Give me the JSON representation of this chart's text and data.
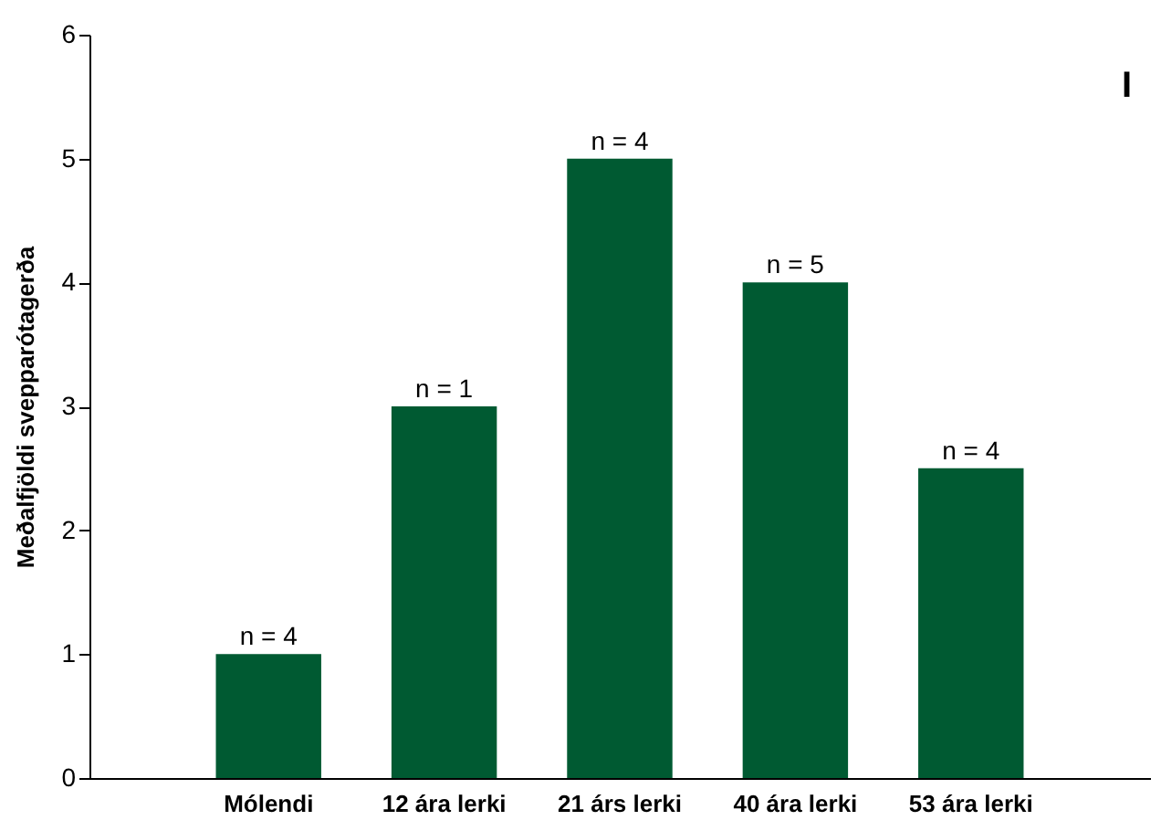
{
  "chart_data": {
    "type": "bar",
    "ylabel": "Meðalfjöldi svepparótagerða",
    "categories": [
      "Mólendi",
      "12 ára lerki",
      "21 árs lerki",
      "40 ára lerki",
      "53 ára lerki"
    ],
    "values": [
      1,
      3,
      5,
      4,
      2.5
    ],
    "color": "#005a32",
    "ylim": [
      0,
      6
    ],
    "yticks": [
      0,
      1,
      2,
      3,
      4,
      5,
      6
    ],
    "grid": false,
    "annotations": [
      {
        "text": "n = 4",
        "x": "Mólendi",
        "y": 1
      },
      {
        "text": "n = 1",
        "x": "12 ára lerki",
        "y": 3
      },
      {
        "text": "n = 4",
        "x": "21 árs lerki",
        "y": 5
      },
      {
        "text": "n = 5",
        "x": "40 ára lerki",
        "y": 4
      },
      {
        "text": "n = 4",
        "x": "53 ára lerki",
        "y": 2.5
      },
      "I"
    ]
  }
}
